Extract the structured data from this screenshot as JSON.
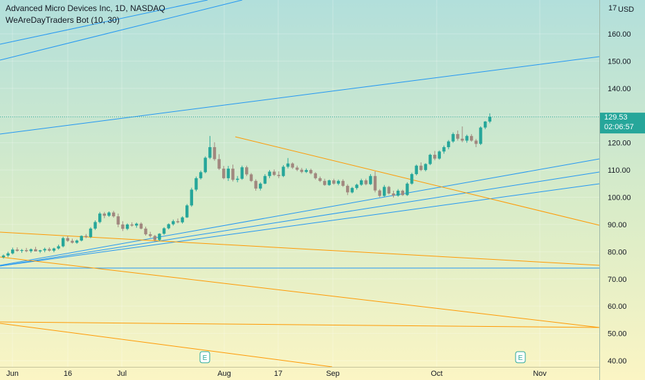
{
  "header": {
    "title": "Advanced Micro Devices Inc, 1D, NASDAQ",
    "indicator": "WeAreDayTraders Bot (10, 30)"
  },
  "price_axis": {
    "currency": "USD",
    "top_partial_label": "17",
    "ticks": [
      160,
      150,
      140,
      130,
      120,
      110,
      100,
      90,
      80,
      70,
      60,
      50,
      40
    ],
    "tick_labels": [
      "160.00",
      "150.00",
      "140.00",
      "130.00",
      "120.00",
      "110.00",
      "100.00",
      "90.00",
      "80.00",
      "70.00",
      "60.00",
      "50.00",
      "40.00"
    ]
  },
  "last_price": {
    "value": 129.53,
    "label": "129.53",
    "countdown": "02:06:57",
    "color": "#26a69a"
  },
  "time_axis": {
    "labels": [
      "Jun",
      "16",
      "Jul",
      "Aug",
      "17",
      "Sep",
      "Oct",
      "Nov"
    ]
  },
  "earnings_markers": {
    "symbol": "E",
    "dates": [
      "2021-07-27",
      "2021-10-26"
    ]
  },
  "colors": {
    "up": "#26a69a",
    "down": "#a1887f",
    "blue_line": "#2196f3",
    "orange_line": "#ff9800",
    "bg_top": "#b2dfdb",
    "bg_bottom": "#fbf5c4"
  },
  "chart_data": {
    "type": "candlestick",
    "title": "Advanced Micro Devices Inc, 1D, NASDAQ",
    "symbol": "AMD",
    "interval": "1D",
    "exchange": "NASDAQ",
    "ylim": [
      38,
      177
    ],
    "ohlc": [
      [
        78.0,
        79.0,
        77.5,
        78.6
      ],
      [
        78.6,
        80.0,
        78.0,
        79.4
      ],
      [
        79.4,
        81.5,
        79.0,
        80.8
      ],
      [
        80.8,
        81.6,
        80.0,
        80.3
      ],
      [
        80.3,
        81.0,
        79.6,
        80.6
      ],
      [
        80.6,
        81.4,
        79.8,
        80.2
      ],
      [
        80.2,
        81.2,
        79.6,
        80.9
      ],
      [
        80.9,
        81.8,
        80.2,
        80.1
      ],
      [
        80.1,
        80.7,
        79.5,
        80.5
      ],
      [
        80.5,
        81.5,
        79.8,
        81.0
      ],
      [
        81.0,
        81.6,
        80.0,
        80.4
      ],
      [
        80.4,
        81.5,
        79.8,
        81.2
      ],
      [
        81.2,
        82.6,
        80.8,
        82.0
      ],
      [
        82.0,
        85.5,
        81.6,
        85.0
      ],
      [
        85.0,
        85.8,
        83.6,
        84.0
      ],
      [
        84.0,
        84.8,
        83.0,
        83.3
      ],
      [
        83.3,
        84.5,
        82.9,
        84.1
      ],
      [
        84.1,
        86.0,
        83.8,
        85.8
      ],
      [
        85.8,
        86.5,
        85.0,
        85.4
      ],
      [
        85.4,
        89.0,
        85.0,
        88.5
      ],
      [
        88.5,
        91.5,
        88.0,
        90.9
      ],
      [
        90.9,
        94.6,
        90.4,
        94.0
      ],
      [
        94.0,
        94.6,
        92.3,
        93.2
      ],
      [
        93.2,
        94.8,
        92.8,
        94.4
      ],
      [
        94.4,
        95.0,
        92.5,
        93.0
      ],
      [
        93.0,
        94.0,
        89.0,
        90.0
      ],
      [
        90.0,
        91.2,
        87.6,
        88.4
      ],
      [
        88.4,
        90.4,
        87.9,
        90.0
      ],
      [
        90.0,
        90.8,
        89.2,
        89.6
      ],
      [
        89.6,
        90.7,
        88.8,
        90.3
      ],
      [
        90.3,
        90.8,
        88.2,
        88.5
      ],
      [
        88.5,
        89.2,
        85.9,
        86.4
      ],
      [
        86.4,
        87.3,
        85.2,
        85.8
      ],
      [
        85.8,
        86.2,
        83.8,
        84.3
      ],
      [
        84.3,
        86.8,
        83.9,
        86.6
      ],
      [
        86.6,
        89.0,
        86.2,
        88.6
      ],
      [
        88.6,
        90.4,
        88.2,
        90.1
      ],
      [
        90.1,
        91.8,
        89.6,
        91.2
      ],
      [
        91.2,
        92.2,
        90.4,
        90.8
      ],
      [
        90.8,
        93.0,
        90.3,
        92.6
      ],
      [
        92.6,
        97.5,
        92.4,
        97.0
      ],
      [
        97.0,
        103.5,
        96.5,
        102.8
      ],
      [
        102.8,
        107.6,
        102.2,
        107.0
      ],
      [
        107.0,
        109.8,
        106.5,
        109.2
      ],
      [
        109.2,
        115.0,
        108.8,
        114.5
      ],
      [
        114.5,
        122.5,
        114.0,
        118.4
      ],
      [
        118.4,
        120.2,
        113.4,
        114.0
      ],
      [
        114.0,
        115.8,
        110.0,
        110.5
      ],
      [
        110.5,
        111.5,
        106.6,
        107.0
      ],
      [
        107.0,
        111.5,
        106.0,
        110.5
      ],
      [
        110.5,
        112.0,
        105.8,
        106.4
      ],
      [
        106.4,
        107.8,
        105.5,
        106.8
      ],
      [
        106.8,
        111.6,
        106.4,
        111.0
      ],
      [
        111.0,
        111.6,
        107.8,
        108.4
      ],
      [
        108.4,
        108.9,
        105.6,
        106.0
      ],
      [
        106.0,
        106.6,
        102.4,
        103.2
      ],
      [
        103.2,
        105.5,
        102.5,
        105.0
      ],
      [
        105.0,
        108.5,
        104.8,
        107.8
      ],
      [
        107.8,
        110.0,
        107.0,
        109.4
      ],
      [
        109.4,
        110.2,
        107.8,
        108.2
      ],
      [
        108.2,
        109.5,
        107.0,
        107.8
      ],
      [
        107.8,
        111.8,
        107.4,
        111.2
      ],
      [
        111.2,
        114.4,
        110.6,
        112.4
      ],
      [
        112.4,
        112.8,
        110.4,
        110.9
      ],
      [
        110.9,
        111.6,
        109.6,
        110.1
      ],
      [
        110.1,
        110.8,
        108.8,
        109.3
      ],
      [
        109.3,
        110.6,
        108.9,
        110.0
      ],
      [
        110.0,
        110.5,
        108.4,
        108.8
      ],
      [
        108.8,
        109.2,
        106.5,
        107.0
      ],
      [
        107.0,
        107.6,
        105.6,
        106.0
      ],
      [
        106.0,
        106.8,
        104.2,
        104.5
      ],
      [
        104.5,
        106.5,
        104.2,
        106.2
      ],
      [
        106.2,
        106.8,
        104.6,
        105.0
      ],
      [
        105.0,
        106.5,
        104.4,
        106.0
      ],
      [
        106.0,
        106.6,
        103.8,
        104.2
      ],
      [
        104.2,
        104.8,
        100.8,
        101.8
      ],
      [
        101.8,
        103.8,
        101.4,
        103.4
      ],
      [
        103.4,
        105.0,
        102.8,
        104.6
      ],
      [
        104.6,
        106.8,
        104.2,
        106.2
      ],
      [
        106.2,
        106.8,
        104.4,
        104.8
      ],
      [
        104.8,
        108.5,
        104.5,
        107.8
      ],
      [
        107.8,
        109.5,
        101.8,
        102.5
      ],
      [
        102.5,
        103.0,
        100.0,
        100.5
      ],
      [
        100.5,
        104.5,
        100.2,
        103.8
      ],
      [
        103.8,
        104.2,
        101.0,
        101.4
      ],
      [
        101.4,
        102.4,
        99.9,
        100.6
      ],
      [
        100.6,
        103.0,
        100.2,
        102.4
      ],
      [
        102.4,
        102.8,
        100.5,
        100.8
      ],
      [
        100.8,
        105.5,
        100.5,
        105.0
      ],
      [
        105.0,
        109.0,
        104.6,
        108.5
      ],
      [
        108.5,
        112.0,
        108.0,
        111.6
      ],
      [
        111.6,
        112.8,
        109.6,
        110.0
      ],
      [
        110.0,
        112.5,
        109.5,
        112.2
      ],
      [
        112.2,
        116.0,
        111.8,
        115.6
      ],
      [
        115.6,
        117.0,
        113.6,
        114.2
      ],
      [
        114.2,
        117.2,
        113.8,
        116.8
      ],
      [
        116.8,
        119.0,
        116.0,
        118.4
      ],
      [
        118.4,
        121.0,
        117.6,
        120.5
      ],
      [
        120.5,
        123.8,
        120.0,
        123.2
      ],
      [
        123.2,
        124.5,
        120.8,
        121.5
      ],
      [
        121.5,
        126.0,
        120.2,
        120.8
      ],
      [
        120.8,
        123.0,
        120.0,
        122.5
      ],
      [
        122.5,
        123.2,
        120.4,
        120.8
      ],
      [
        120.8,
        121.4,
        118.4,
        119.6
      ],
      [
        119.6,
        126.0,
        119.2,
        125.6
      ],
      [
        125.6,
        128.0,
        125.0,
        127.8
      ],
      [
        127.8,
        130.8,
        127.2,
        129.53
      ]
    ]
  }
}
